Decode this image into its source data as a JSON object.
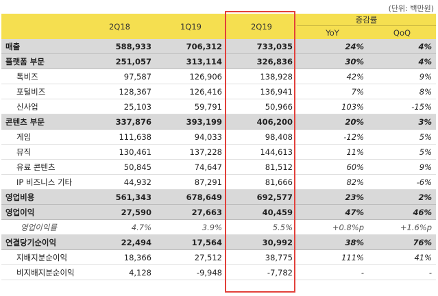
{
  "unit_note": "(단위: 백만원)",
  "header": {
    "periods": [
      "2Q18",
      "1Q19",
      "2Q19"
    ],
    "change_group": "증감률",
    "change_cols": [
      "YoY",
      "QoQ"
    ]
  },
  "rows": [
    {
      "label": "매출",
      "level": "section",
      "values": [
        "588,933",
        "706,312",
        "733,035"
      ],
      "yoy": "24%",
      "qoq": "4%"
    },
    {
      "label": "플랫폼 부문",
      "level": "section",
      "values": [
        "251,057",
        "313,114",
        "326,836"
      ],
      "yoy": "30%",
      "qoq": "4%"
    },
    {
      "label": "톡비즈",
      "level": "item",
      "values": [
        "97,587",
        "126,906",
        "138,928"
      ],
      "yoy": "42%",
      "qoq": "9%"
    },
    {
      "label": "포털비즈",
      "level": "item",
      "values": [
        "128,367",
        "126,416",
        "136,941"
      ],
      "yoy": "7%",
      "qoq": "8%"
    },
    {
      "label": "신사업",
      "level": "item",
      "values": [
        "25,103",
        "59,791",
        "50,966"
      ],
      "yoy": "103%",
      "qoq": "-15%"
    },
    {
      "label": "콘텐츠 부문",
      "level": "section",
      "values": [
        "337,876",
        "393,199",
        "406,200"
      ],
      "yoy": "20%",
      "qoq": "3%"
    },
    {
      "label": "게임",
      "level": "item",
      "values": [
        "111,638",
        "94,033",
        "98,408"
      ],
      "yoy": "-12%",
      "qoq": "5%"
    },
    {
      "label": "뮤직",
      "level": "item",
      "values": [
        "130,461",
        "137,228",
        "144,613"
      ],
      "yoy": "11%",
      "qoq": "5%"
    },
    {
      "label": "유료 콘텐츠",
      "level": "item",
      "values": [
        "50,845",
        "74,647",
        "81,512"
      ],
      "yoy": "60%",
      "qoq": "9%"
    },
    {
      "label": "IP 비즈니스 기타",
      "level": "item",
      "values": [
        "44,932",
        "87,291",
        "81,666"
      ],
      "yoy": "82%",
      "qoq": "-6%"
    },
    {
      "label": "영업비용",
      "level": "section",
      "values": [
        "561,343",
        "678,649",
        "692,577"
      ],
      "yoy": "23%",
      "qoq": "2%"
    },
    {
      "label": "영업이익",
      "level": "section",
      "values": [
        "27,590",
        "27,663",
        "40,459"
      ],
      "yoy": "47%",
      "qoq": "46%"
    },
    {
      "label": "영업이익률",
      "level": "margin",
      "values": [
        "4.7%",
        "3.9%",
        "5.5%"
      ],
      "yoy": "+0.8%p",
      "qoq": "+1.6%p"
    },
    {
      "label": "연결당기순이익",
      "level": "section",
      "values": [
        "22,494",
        "17,564",
        "30,992"
      ],
      "yoy": "38%",
      "qoq": "76%"
    },
    {
      "label": "지배지분순이익",
      "level": "item",
      "values": [
        "18,366",
        "27,512",
        "38,775"
      ],
      "yoy": "111%",
      "qoq": "41%"
    },
    {
      "label": "비지배지분순이익",
      "level": "item",
      "values": [
        "4,128",
        "-9,948",
        "-7,782"
      ],
      "yoy": "-",
      "qoq": "-"
    }
  ]
}
